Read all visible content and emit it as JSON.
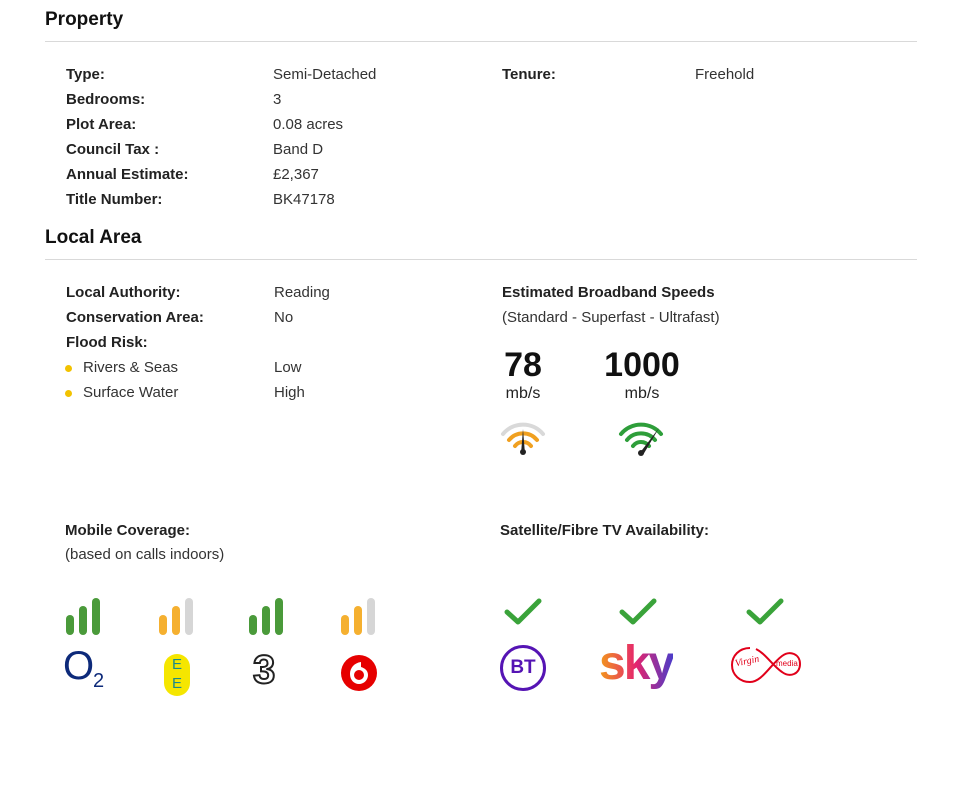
{
  "property": {
    "title": "Property",
    "rows": [
      {
        "label": "Type:",
        "value": "Semi-Detached"
      },
      {
        "label": "Bedrooms:",
        "value": "3"
      },
      {
        "label": "Plot Area:",
        "value": "0.08 acres"
      },
      {
        "label": "Council Tax :",
        "value": "Band D"
      },
      {
        "label": "Annual Estimate:",
        "value": "£2,367"
      },
      {
        "label": "Title Number:",
        "value": "BK47178"
      }
    ],
    "tenure": {
      "label": "Tenure:",
      "value": "Freehold"
    }
  },
  "local_area": {
    "title": "Local Area",
    "authority": {
      "label": "Local Authority:",
      "value": "Reading"
    },
    "conservation": {
      "label": "Conservation Area:",
      "value": "No"
    },
    "flood": {
      "label": "Flood Risk:",
      "items": [
        {
          "label": "Rivers & Seas",
          "value": "Low"
        },
        {
          "label": "Surface Water",
          "value": "High"
        }
      ]
    },
    "broadband": {
      "title": "Estimated Broadband Speeds",
      "subtitle": "(Standard - Superfast - Ultrafast)",
      "speeds": [
        {
          "value": "78",
          "unit": "mb/s",
          "color": "#f0a020"
        },
        {
          "value": "1000",
          "unit": "mb/s",
          "color": "#2e9e3a"
        }
      ]
    },
    "mobile": {
      "title": "Mobile Coverage:",
      "subtitle": "(based on calls indoors)",
      "providers": [
        {
          "name": "o2",
          "bars_filled": 3,
          "color": "#4a9a3a",
          "logo_text": "O",
          "logo_sub": "2"
        },
        {
          "name": "ee",
          "bars_filled": 2,
          "color": "#f5b030",
          "logo_text": "E",
          "logo_sub": "E"
        },
        {
          "name": "three",
          "bars_filled": 3,
          "color": "#4a9a3a",
          "logo_text": "3"
        },
        {
          "name": "vodafone",
          "bars_filled": 2,
          "color": "#f5b030"
        }
      ]
    },
    "tv": {
      "title": "Satellite/Fibre TV Availability:",
      "providers": [
        {
          "name": "bt",
          "available": true,
          "logo_text": "BT"
        },
        {
          "name": "sky",
          "available": true,
          "logo_text": "sky"
        },
        {
          "name": "virgin-media",
          "available": true,
          "logo_text": "Virgin",
          "logo_sub": "media"
        }
      ]
    }
  }
}
